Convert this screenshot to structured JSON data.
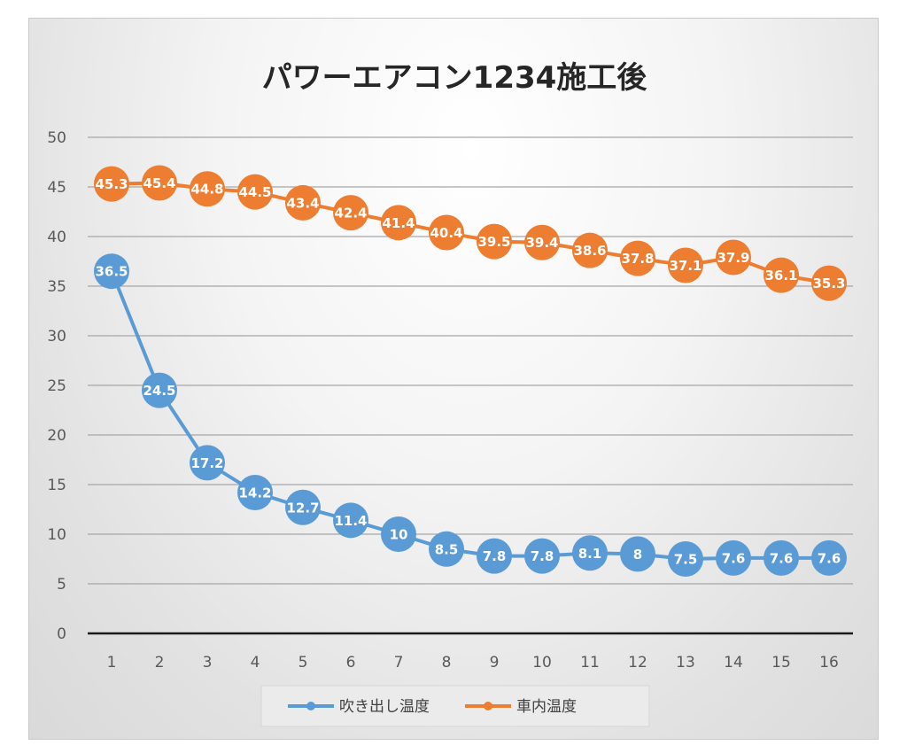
{
  "chart_data": {
    "type": "line",
    "title": "パワーエアコン1234施工後",
    "categories": [
      "1",
      "2",
      "3",
      "4",
      "5",
      "6",
      "7",
      "8",
      "9",
      "10",
      "11",
      "12",
      "13",
      "14",
      "15",
      "16"
    ],
    "ylim": [
      0,
      50
    ],
    "yticks": [
      0,
      5,
      10,
      15,
      20,
      25,
      30,
      35,
      40,
      45,
      50
    ],
    "grid": true,
    "legend_position": "bottom",
    "xlabel": "",
    "ylabel": "",
    "series": [
      {
        "name": "吹き出し温度",
        "color": "#5b9bd5",
        "values": [
          36.5,
          24.5,
          17.2,
          14.2,
          12.7,
          11.4,
          10,
          8.5,
          7.8,
          7.8,
          8.1,
          8,
          7.5,
          7.6,
          7.6,
          7.6
        ]
      },
      {
        "name": "車内温度",
        "color": "#ed7d31",
        "values": [
          45.3,
          45.4,
          44.8,
          44.5,
          43.4,
          42.4,
          41.4,
          40.4,
          39.5,
          39.4,
          38.6,
          37.8,
          37.1,
          37.9,
          36.1,
          35.3
        ]
      }
    ]
  }
}
